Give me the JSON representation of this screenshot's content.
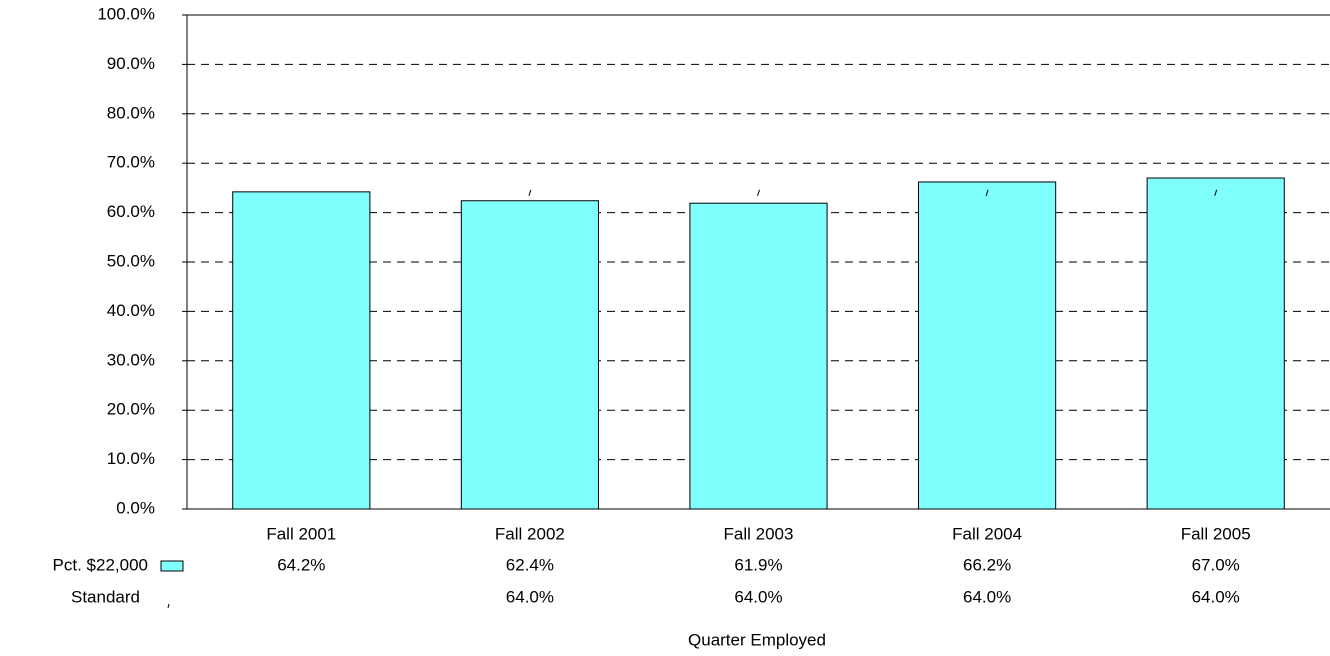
{
  "chart_data": {
    "type": "bar",
    "categories": [
      "Fall 2001",
      "Fall 2002",
      "Fall 2003",
      "Fall 2004",
      "Fall 2005"
    ],
    "series": [
      {
        "name": "Pct. $22,000",
        "color": "#80ffff",
        "values": [
          64.2,
          62.4,
          61.9,
          66.2,
          67.0
        ],
        "value_labels": [
          "64.2%",
          "62.4%",
          "61.9%",
          "66.2%",
          "67.0%"
        ]
      },
      {
        "name": "Standard",
        "color": "#000000",
        "values": [
          null,
          64.0,
          64.0,
          64.0,
          64.0
        ],
        "value_labels": [
          null,
          "64.0%",
          "64.0%",
          "64.0%",
          "64.0%"
        ]
      }
    ],
    "x_label": "Quarter Employed",
    "ylim": [
      0,
      100
    ],
    "yticks": [
      {
        "value": 0,
        "label": "0.0%"
      },
      {
        "value": 10,
        "label": "10.0%"
      },
      {
        "value": 20,
        "label": "20.0%"
      },
      {
        "value": 30,
        "label": "30.0%"
      },
      {
        "value": 40,
        "label": "40.0%"
      },
      {
        "value": 50,
        "label": "50.0%"
      },
      {
        "value": 60,
        "label": "60.0%"
      },
      {
        "value": 70,
        "label": "70.0%"
      },
      {
        "value": 80,
        "label": "80.0%"
      },
      {
        "value": 90,
        "label": "90.0%"
      },
      {
        "value": 100,
        "label": "100.0%"
      }
    ],
    "grid": true
  }
}
